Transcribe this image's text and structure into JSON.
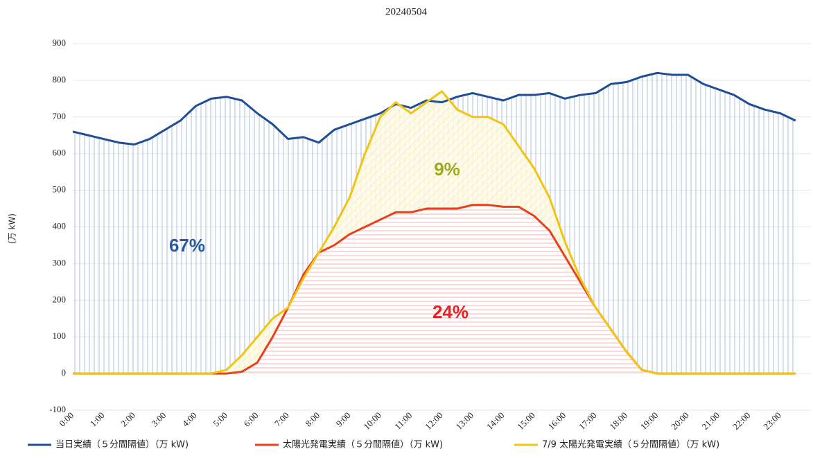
{
  "chart_data": {
    "type": "line",
    "title": "20240504",
    "y_label": "(万 kW)",
    "categories": [
      "0:00",
      null,
      "1:00",
      null,
      "2:00",
      null,
      "3:00",
      null,
      "4:00",
      null,
      "5:00",
      null,
      "6:00",
      null,
      "7:00",
      null,
      "8:00",
      null,
      "9:00",
      null,
      "10:00",
      null,
      "11:00",
      null,
      "12:00",
      null,
      "13:00",
      null,
      "14:00",
      null,
      "15:00",
      null,
      "16:00",
      null,
      "17:00",
      null,
      "18:00",
      null,
      "19:00",
      null,
      "20:00",
      null,
      "21:00",
      null,
      "22:00",
      null,
      "23:00",
      null
    ],
    "series": [
      {
        "name": "当日実績（５分間隔値）（万 kW)",
        "color": "#1f4e96",
        "values": [
          660,
          650,
          640,
          630,
          625,
          640,
          665,
          690,
          730,
          750,
          755,
          745,
          710,
          680,
          640,
          645,
          630,
          665,
          680,
          695,
          710,
          735,
          725,
          745,
          740,
          755,
          765,
          755,
          745,
          760,
          760,
          765,
          750,
          760,
          765,
          790,
          795,
          810,
          820,
          815,
          815,
          790,
          775,
          760,
          735,
          720,
          710,
          690
        ]
      },
      {
        "name": "太陽光発電実績（５分間隔値）（万 kW)",
        "color": "#e8401c",
        "values": [
          0,
          0,
          0,
          0,
          0,
          0,
          0,
          0,
          0,
          0,
          0,
          5,
          30,
          100,
          180,
          270,
          330,
          350,
          380,
          400,
          420,
          440,
          440,
          450,
          450,
          450,
          460,
          460,
          455,
          455,
          430,
          390,
          320,
          250,
          180,
          120,
          60,
          10,
          0,
          0,
          0,
          0,
          0,
          0,
          0,
          0,
          0,
          0
        ]
      },
      {
        "name": "7/9 太陽光発電実績（５分間隔値）（万 kW)",
        "color": "#f2c40f",
        "values": [
          0,
          0,
          0,
          0,
          0,
          0,
          0,
          0,
          0,
          0,
          10,
          50,
          100,
          150,
          180,
          260,
          330,
          400,
          480,
          600,
          700,
          740,
          710,
          740,
          770,
          720,
          700,
          700,
          680,
          620,
          560,
          480,
          360,
          260,
          180,
          120,
          60,
          10,
          0,
          0,
          0,
          0,
          0,
          0,
          0,
          0,
          0,
          0
        ]
      }
    ],
    "annotations": [
      "67%",
      "9%",
      "24%"
    ],
    "ylim": [
      -100,
      900
    ],
    "yticks": [
      -100,
      0,
      100,
      200,
      300,
      400,
      500,
      600,
      700,
      800,
      900
    ],
    "grid": true,
    "legend": "bottom"
  }
}
